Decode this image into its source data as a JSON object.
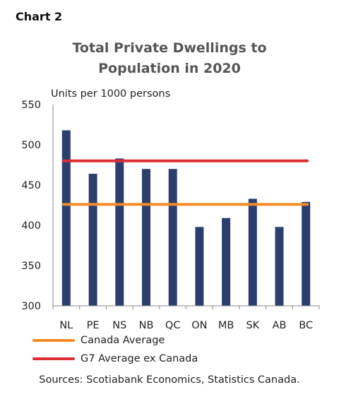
{
  "header": {
    "chart_label": "Chart 2"
  },
  "chart_data": {
    "type": "bar",
    "title_lines": [
      "Total Private Dwellings to",
      "Population in 2020"
    ],
    "ylabel": "Units per 1000 persons",
    "xlabel": "",
    "categories": [
      "NL",
      "PE",
      "NS",
      "NB",
      "QC",
      "ON",
      "MB",
      "SK",
      "AB",
      "BC"
    ],
    "values": [
      518,
      464,
      483,
      470,
      470,
      398,
      409,
      433,
      398,
      429
    ],
    "ylim": [
      300,
      550
    ],
    "yticks": [
      "300",
      "350",
      "400",
      "450",
      "500",
      "550"
    ],
    "reference_lines": [
      {
        "name": "Canada Average",
        "value": 426,
        "color": "#F28C28"
      },
      {
        "name": "G7 Average ex Canada",
        "value": 480,
        "color": "#DC2F34"
      }
    ],
    "bar_color": "#2B3F6E",
    "grid": false,
    "legend_position": "bottom-left"
  },
  "footer": {
    "source": "Sources: Scotiabank Economics, Statistics Canada."
  }
}
